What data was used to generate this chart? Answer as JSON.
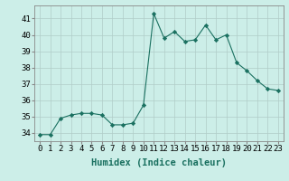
{
  "x": [
    0,
    1,
    2,
    3,
    4,
    5,
    6,
    7,
    8,
    9,
    10,
    11,
    12,
    13,
    14,
    15,
    16,
    17,
    18,
    19,
    20,
    21,
    22,
    23
  ],
  "y": [
    33.9,
    33.9,
    34.9,
    35.1,
    35.2,
    35.2,
    35.1,
    34.5,
    34.5,
    34.6,
    35.7,
    41.3,
    39.8,
    40.2,
    39.6,
    39.7,
    40.6,
    39.7,
    40.0,
    38.3,
    37.8,
    37.2,
    36.7,
    36.6
  ],
  "line_color": "#1a7060",
  "marker": "D",
  "marker_size": 2.2,
  "bg_color": "#cceee8",
  "grid_color": "#b0ccc8",
  "xlabel": "Humidex (Indice chaleur)",
  "ylim": [
    33.5,
    41.8
  ],
  "xlim": [
    -0.5,
    23.5
  ],
  "yticks": [
    34,
    35,
    36,
    37,
    38,
    39,
    40,
    41
  ],
  "xticks": [
    0,
    1,
    2,
    3,
    4,
    5,
    6,
    7,
    8,
    9,
    10,
    11,
    12,
    13,
    14,
    15,
    16,
    17,
    18,
    19,
    20,
    21,
    22,
    23
  ],
  "tick_fontsize": 6.5,
  "label_fontsize": 7.5
}
